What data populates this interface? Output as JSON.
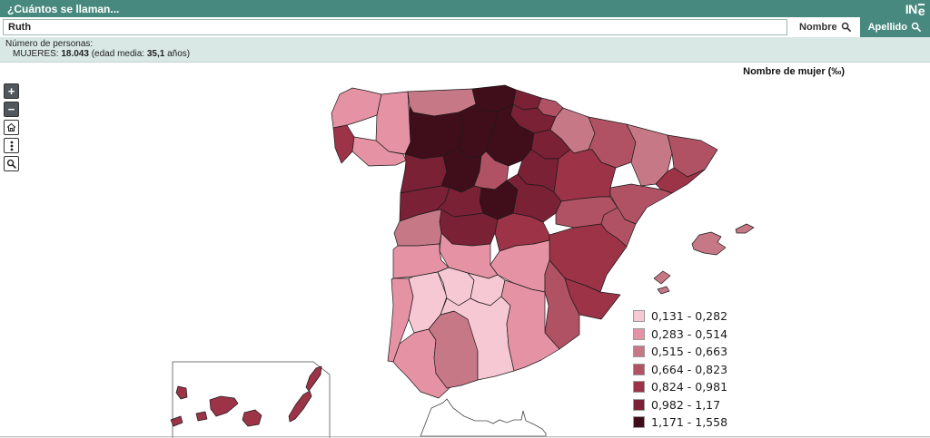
{
  "header": {
    "title": "¿Cuántos se llaman...",
    "logo_in": "IN",
    "logo_e": "e"
  },
  "search": {
    "value": "Ruth",
    "nombre_label": "Nombre",
    "apellido_label": "Apellido"
  },
  "info": {
    "line1": "Número de personas:",
    "gender_label": "MUJERES:",
    "count": "18.043",
    "age_prefix": "(edad media:",
    "age_value": "35,1",
    "age_suffix": "años)"
  },
  "controls": {
    "zoom_in": "+",
    "zoom_out": "−"
  },
  "map": {
    "title": "Nombre de mujer (‰)",
    "legend": {
      "items": [
        {
          "range": "0,131 - 0,282",
          "color": "#f6c8d3"
        },
        {
          "range": "0,283 - 0,514",
          "color": "#e593a4"
        },
        {
          "range": "0,515 - 0,663",
          "color": "#c77886"
        },
        {
          "range": "0,664 - 0,823",
          "color": "#b05264"
        },
        {
          "range": "0,824 - 0,981",
          "color": "#9c3347"
        },
        {
          "range": "0,982 - 1,17",
          "color": "#7a2135"
        },
        {
          "range": "1,171 - 1,558",
          "color": "#400e1a"
        }
      ]
    }
  }
}
